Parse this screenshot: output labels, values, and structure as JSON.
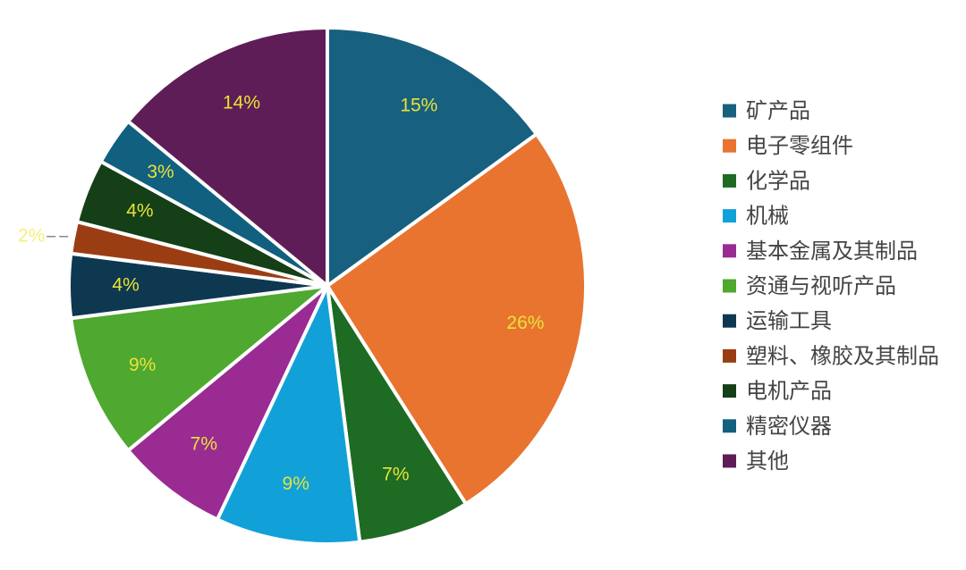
{
  "chart_data": {
    "type": "pie",
    "title": "",
    "legend_position": "right",
    "slices": [
      {
        "name": "矿产品",
        "value": 15,
        "label": "15%",
        "color": "#17607f"
      },
      {
        "name": "电子零组件",
        "value": 26,
        "label": "26%",
        "color": "#e87430"
      },
      {
        "name": "化学品",
        "value": 7,
        "label": "7%",
        "color": "#1e6b24"
      },
      {
        "name": "机械",
        "value": 9,
        "label": "9%",
        "color": "#11a1d8"
      },
      {
        "name": "基本金属及其制品",
        "value": 7,
        "label": "7%",
        "color": "#9a2b92"
      },
      {
        "name": "资通与视听产品",
        "value": 9,
        "label": "9%",
        "color": "#4fa82f"
      },
      {
        "name": "运输工具",
        "value": 4,
        "label": "4%",
        "color": "#0e3850"
      },
      {
        "name": "塑料、橡胶及其制品",
        "value": 2,
        "label": "2%",
        "color": "#9b3d13"
      },
      {
        "name": "电机产品",
        "value": 4,
        "label": "4%",
        "color": "#143f17"
      },
      {
        "name": "精密仪器",
        "value": 3,
        "label": "3%",
        "color": "#11607f"
      },
      {
        "name": "其他",
        "value": 14,
        "label": "14%",
        "color": "#5f1d57"
      }
    ]
  }
}
